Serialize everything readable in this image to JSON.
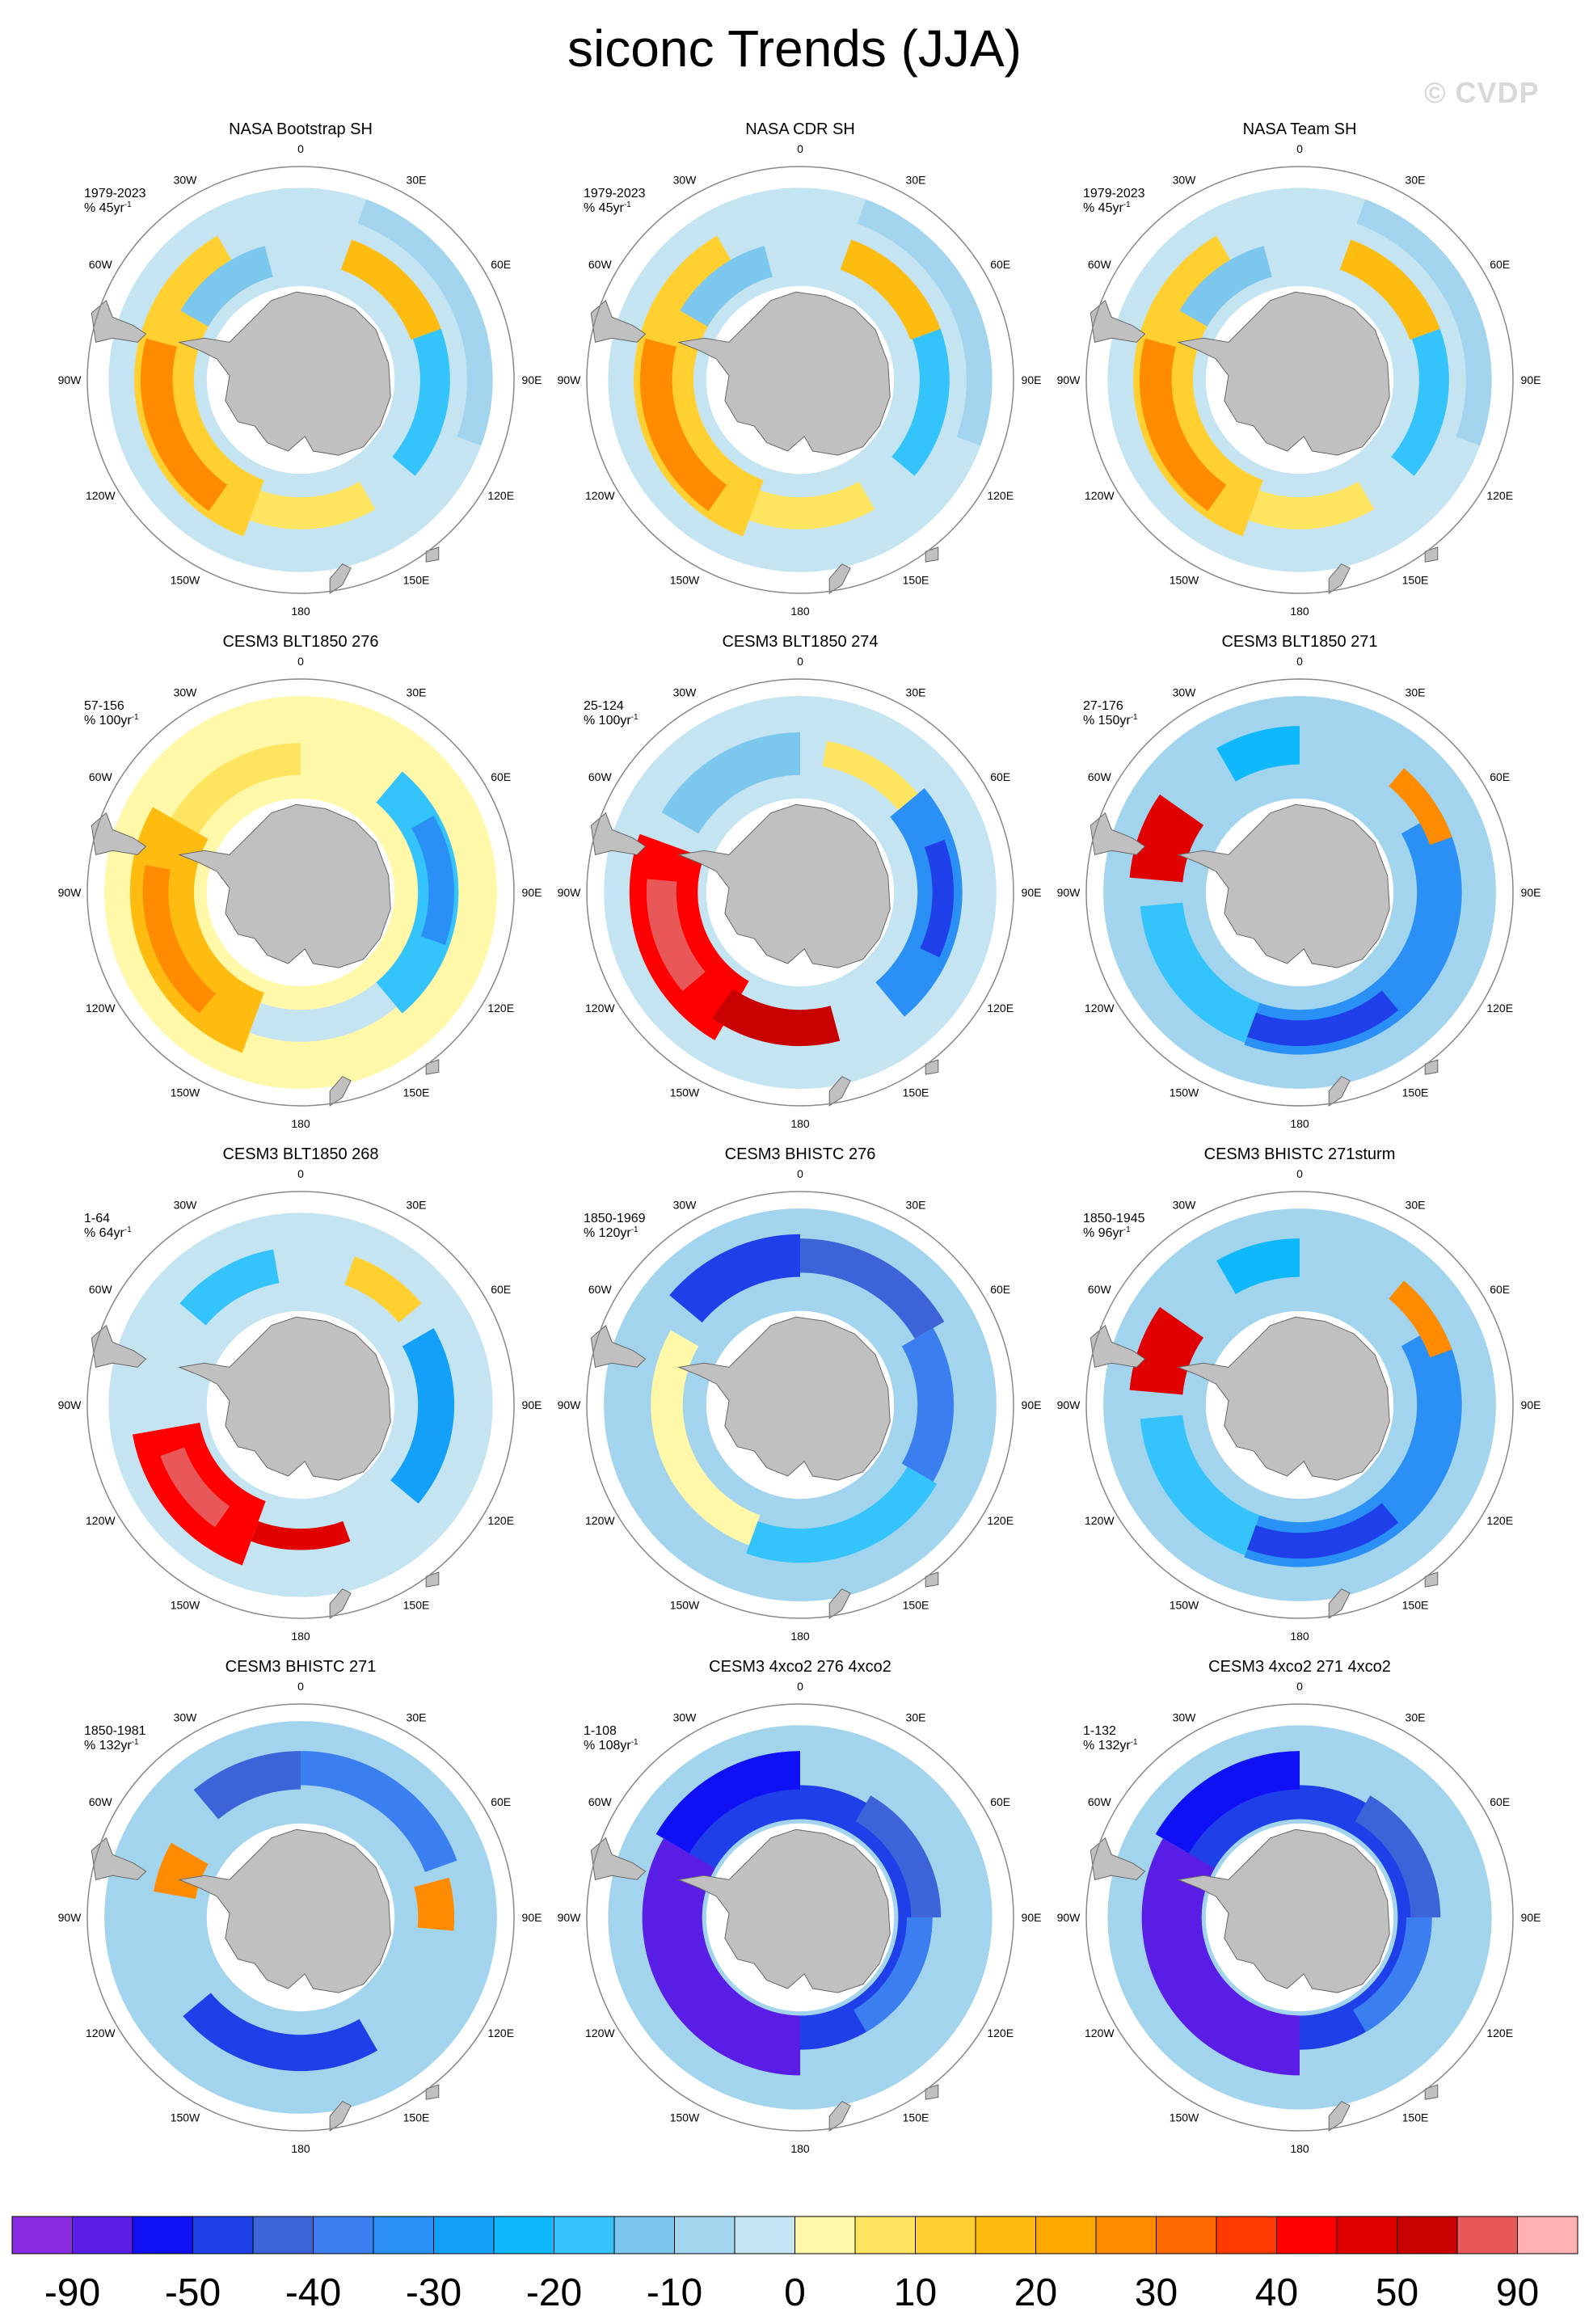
{
  "title": "siconc Trends (JJA)",
  "watermark": "© CVDP",
  "colors": {
    "land": "#c0c0c0",
    "circle": "#888888"
  },
  "longitude_labels": [
    "0",
    "30E",
    "60E",
    "90E",
    "120E",
    "150E",
    "180",
    "150W",
    "120W",
    "90W",
    "60W",
    "30W"
  ],
  "panels": [
    {
      "title": "NASA Bootstrap SH",
      "period": "1979-2023",
      "units_scale": "% 45yr",
      "pattern": "obs_mixed"
    },
    {
      "title": "NASA CDR SH",
      "period": "1979-2023",
      "units_scale": "% 45yr",
      "pattern": "obs_mixed"
    },
    {
      "title": "NASA Team SH",
      "period": "1979-2023",
      "units_scale": "% 45yr",
      "pattern": "obs_mixed"
    },
    {
      "title": "CESM3 BLT1850 276",
      "period": "57-156",
      "units_scale": "% 100yr",
      "pattern": "warm_west_cool_east"
    },
    {
      "title": "CESM3 BLT1850 274",
      "period": "25-124",
      "units_scale": "% 100yr",
      "pattern": "strong_warm_ross_cool_east"
    },
    {
      "title": "CESM3 BLT1850 271",
      "period": "27-176",
      "units_scale": "% 150yr",
      "pattern": "warm_weddell_cool_ring"
    },
    {
      "title": "CESM3 BLT1850 268",
      "period": "1-64",
      "units_scale": "% 64yr",
      "pattern": "strong_warm_ross_mixed"
    },
    {
      "title": "CESM3 BHISTC 276",
      "period": "1850-1969",
      "units_scale": "% 120yr",
      "pattern": "cool_ring"
    },
    {
      "title": "CESM3 BHISTC 271sturm",
      "period": "1850-1945",
      "units_scale": "% 96yr",
      "pattern": "warm_weddell_cool_ring"
    },
    {
      "title": "CESM3 BHISTC 271",
      "period": "1850-1981",
      "units_scale": "% 132yr",
      "pattern": "cool_ring_warm_spots"
    },
    {
      "title": "CESM3 4xco2 276 4xco2",
      "period": "1-108",
      "units_scale": "% 108yr",
      "pattern": "deep_cool_ring"
    },
    {
      "title": "CESM3 4xco2 271 4xco2",
      "period": "1-132",
      "units_scale": "% 132yr",
      "pattern": "deep_cool_ring"
    }
  ],
  "colorbar": {
    "colors": [
      "#8a2be2",
      "#5a1de6",
      "#1010f5",
      "#1f3fe8",
      "#3d63d8",
      "#3a7ef0",
      "#2a90f5",
      "#12a0f8",
      "#0fb8fb",
      "#35c3fb",
      "#7bc7ee",
      "#a3d4ee",
      "#c4e4f2",
      "#fff8a8",
      "#ffe460",
      "#ffd030",
      "#ffbc10",
      "#ffa800",
      "#ff8c00",
      "#ff6a00",
      "#ff3a00",
      "#ff0000",
      "#e00000",
      "#c80000",
      "#e85858",
      "#ffb0b0"
    ],
    "labels": [
      "-90",
      "-50",
      "-40",
      "-30",
      "-20",
      "-10",
      "0",
      "10",
      "20",
      "30",
      "40",
      "50",
      "90"
    ]
  }
}
